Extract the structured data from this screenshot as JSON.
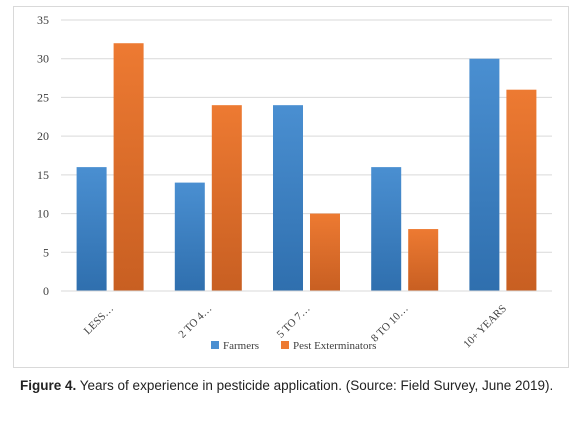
{
  "chart_data": {
    "type": "bar",
    "categories": [
      "LESS…",
      "2 TO 4…",
      "5 TO 7…",
      "8 TO 10…",
      "10+ YEARS"
    ],
    "series": [
      {
        "name": "Farmers",
        "values": [
          16,
          14,
          24,
          16,
          30
        ],
        "color": "#4a8fd1"
      },
      {
        "name": "Pest Exterminators",
        "values": [
          32,
          24,
          10,
          8,
          26
        ],
        "color": "#ed7a32"
      }
    ],
    "yticks": [
      0,
      5,
      10,
      15,
      20,
      25,
      30,
      35
    ],
    "ylim": [
      0,
      35
    ],
    "grid": true,
    "legend": "bottom",
    "title": "",
    "xlabel": "",
    "ylabel": ""
  },
  "caption": {
    "label": "Figure 4.",
    "text": " Years of experience in pesticide application. (Source: Field Survey, June 2019)."
  }
}
